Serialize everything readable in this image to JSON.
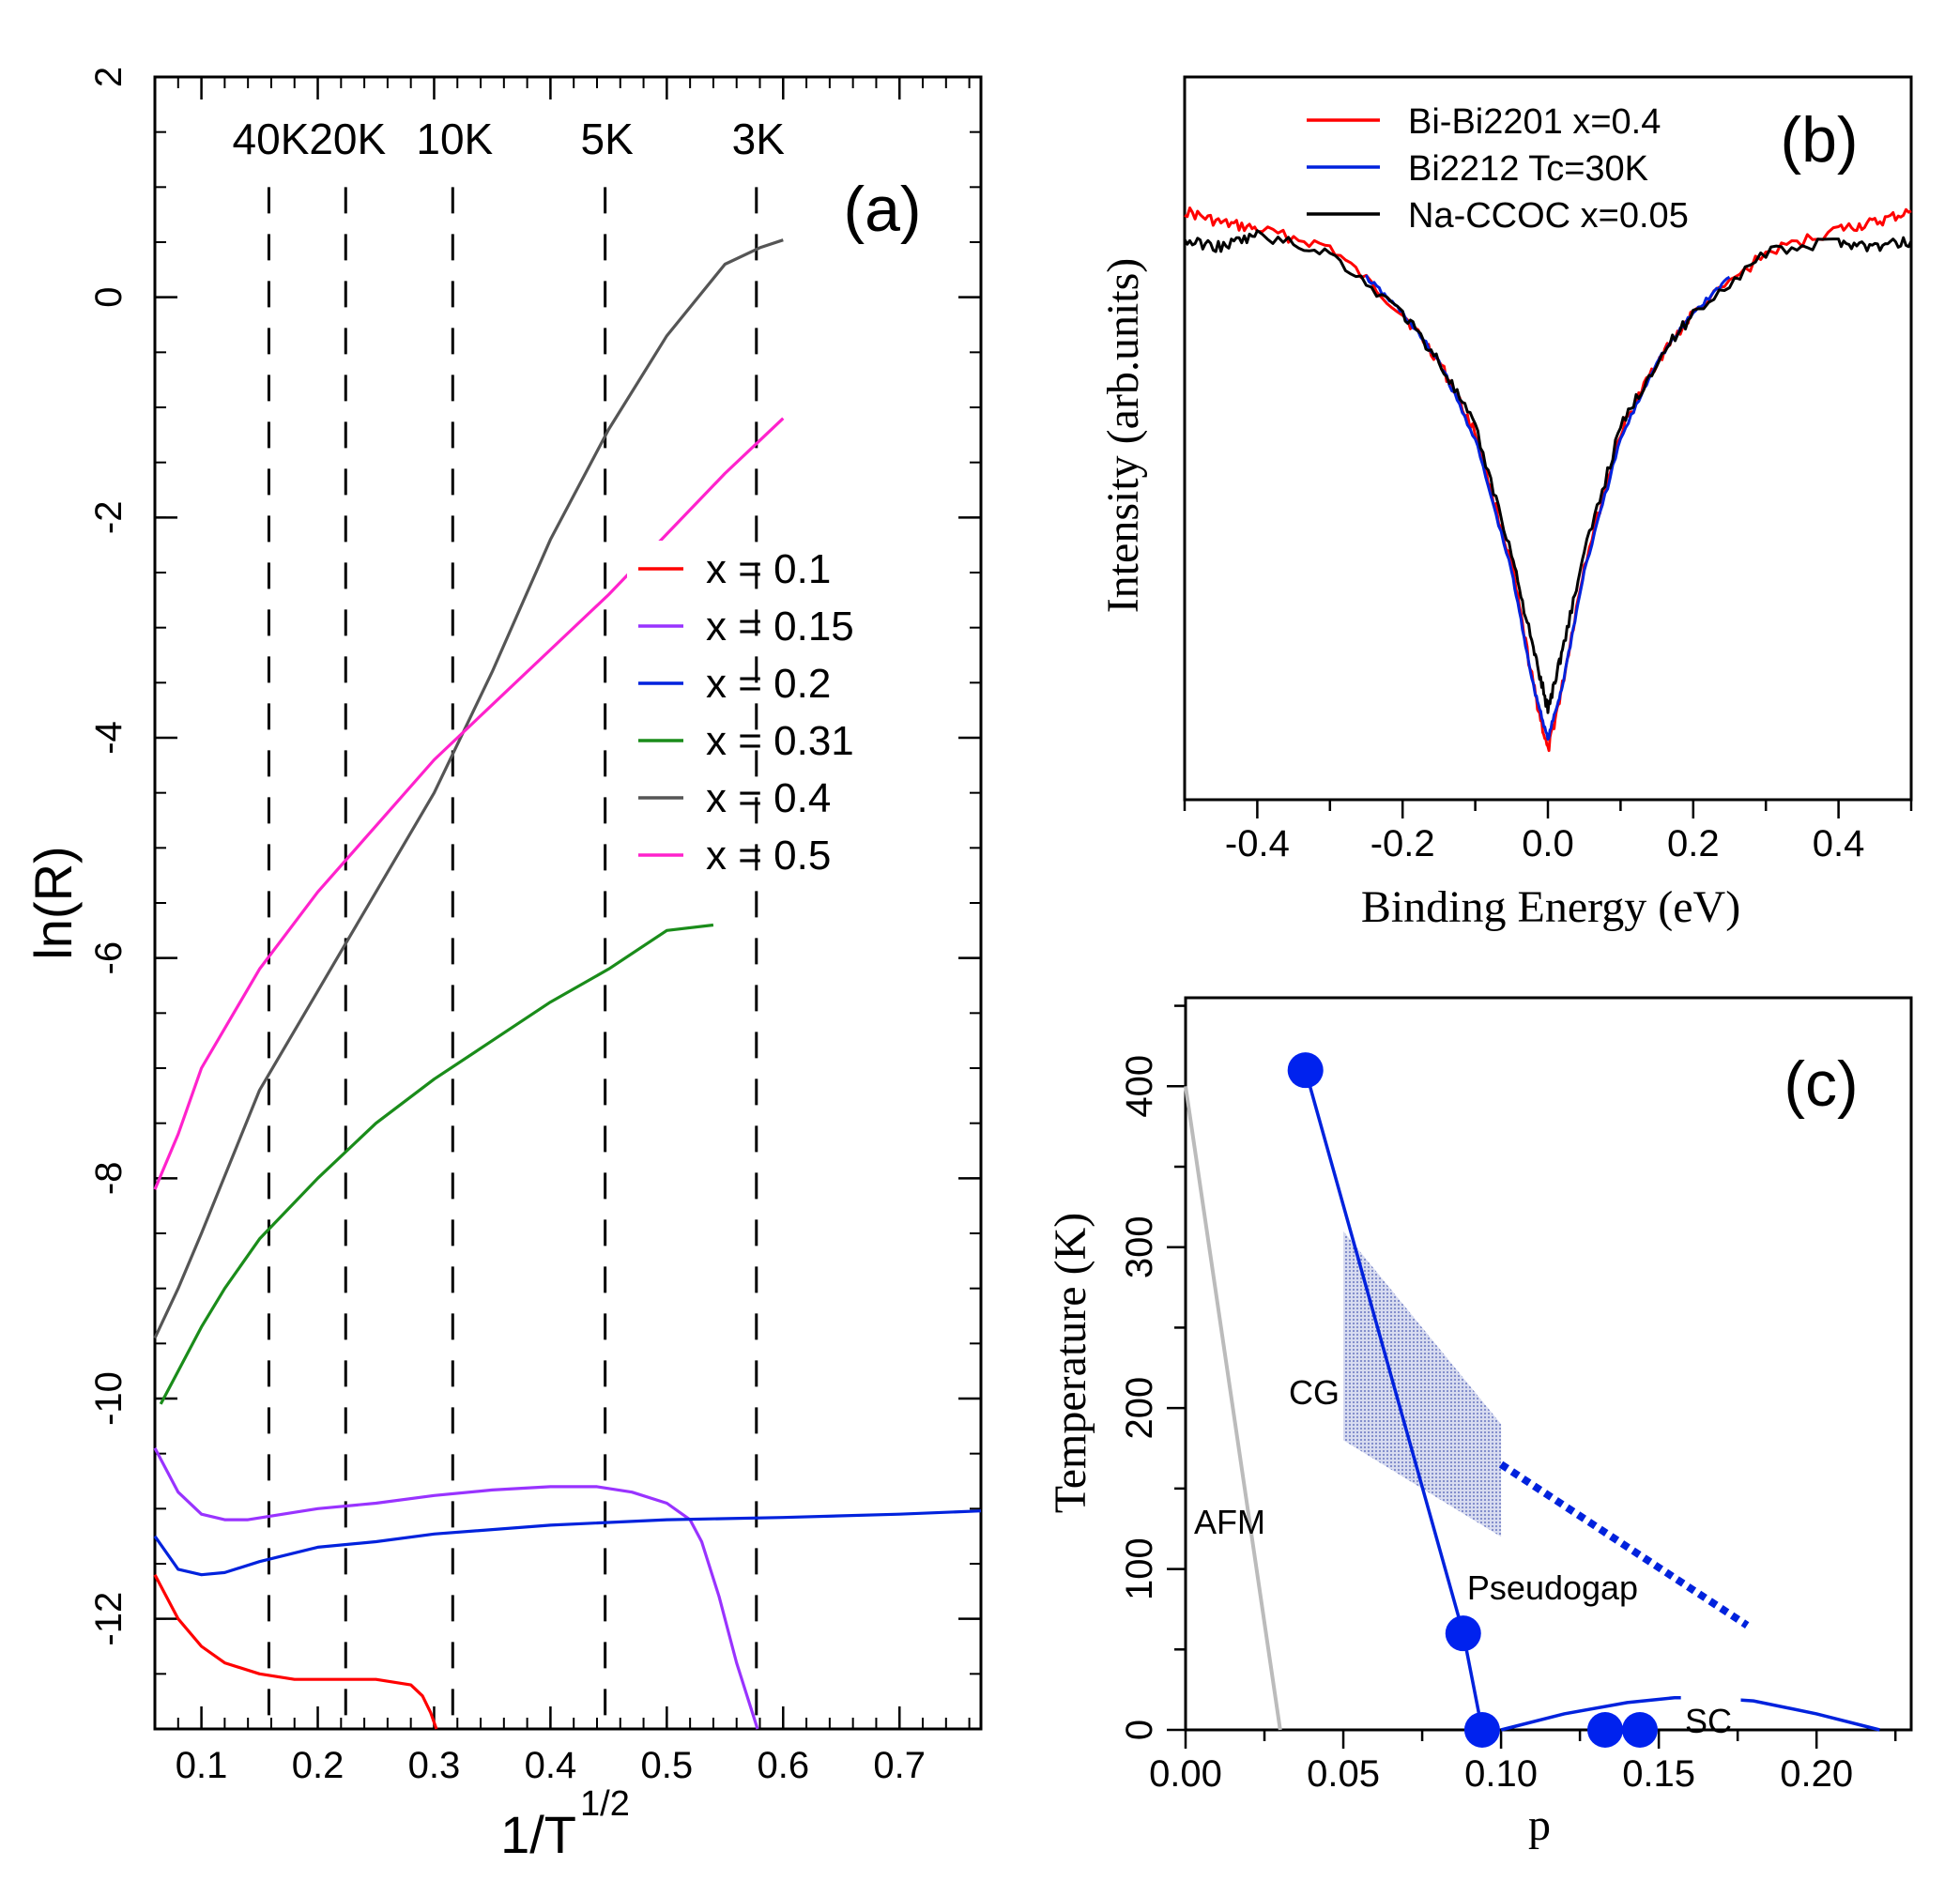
{
  "chart_data": [
    {
      "id": "a",
      "type": "line",
      "panel_label": "(a)",
      "xlabel": "1/T",
      "xlabel_superscript": "1/2",
      "ylabel": "ln(R)",
      "xlim": [
        0.06,
        0.77
      ],
      "ylim": [
        -13,
        2
      ],
      "xticks": [
        0.1,
        0.2,
        0.3,
        0.4,
        0.5,
        0.6,
        0.7
      ],
      "xtick_labels": [
        "0.1",
        "0.2",
        "0.3",
        "0.4",
        "0.5",
        "0.6",
        "0.7"
      ],
      "yticks": [
        2,
        0,
        -2,
        -4,
        -6,
        -8,
        -10,
        -12
      ],
      "ytick_labels": [
        "2",
        "0",
        "-2",
        "-4",
        "-6",
        "-8",
        "-10",
        "-12"
      ],
      "reference_lines": [
        {
          "x": 0.158,
          "label": "40K"
        },
        {
          "x": 0.224,
          "label": "20K"
        },
        {
          "x": 0.316,
          "label": "10K"
        },
        {
          "x": 0.447,
          "label": "5K"
        },
        {
          "x": 0.577,
          "label": "3K"
        }
      ],
      "series": [
        {
          "name": "x = 0.1",
          "color": "#ff0000",
          "x": [
            0.06,
            0.08,
            0.1,
            0.12,
            0.15,
            0.18,
            0.2,
            0.25,
            0.28,
            0.29,
            0.297,
            0.302
          ],
          "y": [
            -11.6,
            -12.0,
            -12.25,
            -12.4,
            -12.5,
            -12.55,
            -12.55,
            -12.55,
            -12.6,
            -12.7,
            -12.85,
            -13.0
          ]
        },
        {
          "name": "x = 0.15",
          "color": "#9933ff",
          "x": [
            0.06,
            0.08,
            0.1,
            0.12,
            0.14,
            0.17,
            0.2,
            0.25,
            0.3,
            0.35,
            0.4,
            0.44,
            0.47,
            0.5,
            0.52,
            0.53,
            0.545,
            0.56,
            0.578
          ],
          "y": [
            -10.45,
            -10.85,
            -11.05,
            -11.1,
            -11.1,
            -11.05,
            -11.0,
            -10.95,
            -10.88,
            -10.83,
            -10.8,
            -10.8,
            -10.85,
            -10.95,
            -11.1,
            -11.3,
            -11.8,
            -12.4,
            -13.0
          ]
        },
        {
          "name": "x = 0.2",
          "color": "#0022dd",
          "x": [
            0.06,
            0.08,
            0.1,
            0.12,
            0.15,
            0.2,
            0.25,
            0.3,
            0.4,
            0.5,
            0.6,
            0.7,
            0.77
          ],
          "y": [
            -11.25,
            -11.55,
            -11.6,
            -11.58,
            -11.48,
            -11.35,
            -11.3,
            -11.23,
            -11.15,
            -11.1,
            -11.08,
            -11.05,
            -11.02
          ]
        },
        {
          "name": "x = 0.31",
          "color": "#1a8c1a",
          "x": [
            0.065,
            0.08,
            0.1,
            0.12,
            0.15,
            0.2,
            0.25,
            0.3,
            0.35,
            0.4,
            0.45,
            0.5,
            0.54
          ],
          "y": [
            -10.05,
            -9.75,
            -9.35,
            -9.0,
            -8.55,
            -8.0,
            -7.5,
            -7.1,
            -6.75,
            -6.4,
            -6.1,
            -5.75,
            -5.7
          ]
        },
        {
          "name": "x = 0.4",
          "color": "#555555",
          "x": [
            0.06,
            0.08,
            0.1,
            0.15,
            0.2,
            0.25,
            0.3,
            0.35,
            0.4,
            0.45,
            0.5,
            0.55,
            0.58,
            0.6
          ],
          "y": [
            -9.45,
            -9.0,
            -8.5,
            -7.2,
            -6.3,
            -5.4,
            -4.5,
            -3.4,
            -2.2,
            -1.2,
            -0.35,
            0.3,
            0.45,
            0.52
          ]
        },
        {
          "name": "x = 0.5",
          "color": "#ff22cc",
          "x": [
            0.06,
            0.08,
            0.1,
            0.15,
            0.2,
            0.25,
            0.3,
            0.35,
            0.4,
            0.45,
            0.5,
            0.55,
            0.58,
            0.6
          ],
          "y": [
            -8.1,
            -7.6,
            -7.0,
            -6.1,
            -5.4,
            -4.8,
            -4.2,
            -3.7,
            -3.2,
            -2.7,
            -2.15,
            -1.6,
            -1.3,
            -1.1
          ]
        }
      ]
    },
    {
      "id": "b",
      "type": "line",
      "panel_label": "(b)",
      "xlabel": "Binding Energy (eV)",
      "ylabel": "Intensity (arb.units)",
      "xlim": [
        -0.5,
        0.5
      ],
      "ylim": [
        0,
        1
      ],
      "xticks": [
        -0.4,
        -0.2,
        0.0,
        0.2,
        0.4
      ],
      "xtick_labels": [
        "-0.4",
        "-0.2",
        "0.0",
        "0.2",
        "0.4"
      ],
      "series": [
        {
          "name": "Bi-Bi2201 x=0.4",
          "color": "#ff0000",
          "x": [
            -0.5,
            -0.45,
            -0.4,
            -0.3,
            -0.2,
            -0.15,
            -0.1,
            -0.05,
            -0.02,
            0.0,
            0.02,
            0.05,
            0.1,
            0.15,
            0.2,
            0.3,
            0.4,
            0.45,
            0.5
          ],
          "y": [
            0.93,
            0.91,
            0.9,
            0.87,
            0.76,
            0.68,
            0.56,
            0.34,
            0.14,
            0.03,
            0.14,
            0.34,
            0.56,
            0.68,
            0.76,
            0.86,
            0.9,
            0.91,
            0.93
          ]
        },
        {
          "name": "Bi2212 Tc=30K",
          "color": "#0022dd",
          "x": [
            -0.25,
            -0.2,
            -0.15,
            -0.1,
            -0.05,
            -0.02,
            0.0,
            0.02,
            0.05,
            0.1,
            0.15,
            0.2,
            0.25
          ],
          "y": [
            0.82,
            0.76,
            0.68,
            0.55,
            0.33,
            0.14,
            0.05,
            0.14,
            0.33,
            0.55,
            0.68,
            0.76,
            0.82
          ]
        },
        {
          "name": "Na-CCOC x=0.05",
          "color": "#000000",
          "x": [
            -0.5,
            -0.45,
            -0.4,
            -0.3,
            -0.2,
            -0.15,
            -0.1,
            -0.05,
            -0.02,
            0.0,
            0.02,
            0.05,
            0.1,
            0.15,
            0.2,
            0.3,
            0.4,
            0.45,
            0.5
          ],
          "y": [
            0.88,
            0.87,
            0.89,
            0.86,
            0.76,
            0.68,
            0.57,
            0.36,
            0.2,
            0.1,
            0.2,
            0.36,
            0.57,
            0.68,
            0.76,
            0.86,
            0.88,
            0.87,
            0.88
          ]
        }
      ]
    },
    {
      "id": "c",
      "type": "scatter",
      "panel_label": "(c)",
      "xlabel": "p",
      "ylabel": "Temperature (K)",
      "xlim": [
        0,
        0.23
      ],
      "ylim": [
        0,
        455
      ],
      "xticks": [
        0.0,
        0.05,
        0.1,
        0.15,
        0.2
      ],
      "xtick_labels": [
        "0.00",
        "0.05",
        "0.10",
        "0.15",
        "0.20"
      ],
      "yticks": [
        0,
        100,
        200,
        300,
        400
      ],
      "ytick_labels": [
        "0",
        "100",
        "200",
        "300",
        "400"
      ],
      "points": [
        {
          "x": 0.038,
          "y": 410
        },
        {
          "x": 0.088,
          "y": 60
        },
        {
          "x": 0.094,
          "y": 0
        },
        {
          "x": 0.133,
          "y": 0
        },
        {
          "x": 0.144,
          "y": 0
        }
      ],
      "pseudogap_line": {
        "x": [
          0.038,
          0.088,
          0.094
        ],
        "y": [
          410,
          60,
          0
        ]
      },
      "pseudogap_dotted": {
        "x": [
          0.1,
          0.178
        ],
        "y": [
          165,
          65
        ]
      },
      "afm_line": {
        "x": [
          0.0,
          0.03
        ],
        "y": [
          400,
          0
        ]
      },
      "sc_dome": {
        "x": [
          0.1,
          0.12,
          0.14,
          0.155,
          0.165,
          0.18,
          0.2,
          0.22
        ],
        "y": [
          0,
          10,
          17,
          20,
          20,
          18,
          10,
          0
        ]
      },
      "cg_region": {
        "x": [
          0.05,
          0.05,
          0.1,
          0.1
        ],
        "y": [
          180,
          310,
          190,
          120
        ]
      },
      "annotations": [
        "CG",
        "AFM",
        "Pseudogap",
        "SC"
      ]
    }
  ]
}
